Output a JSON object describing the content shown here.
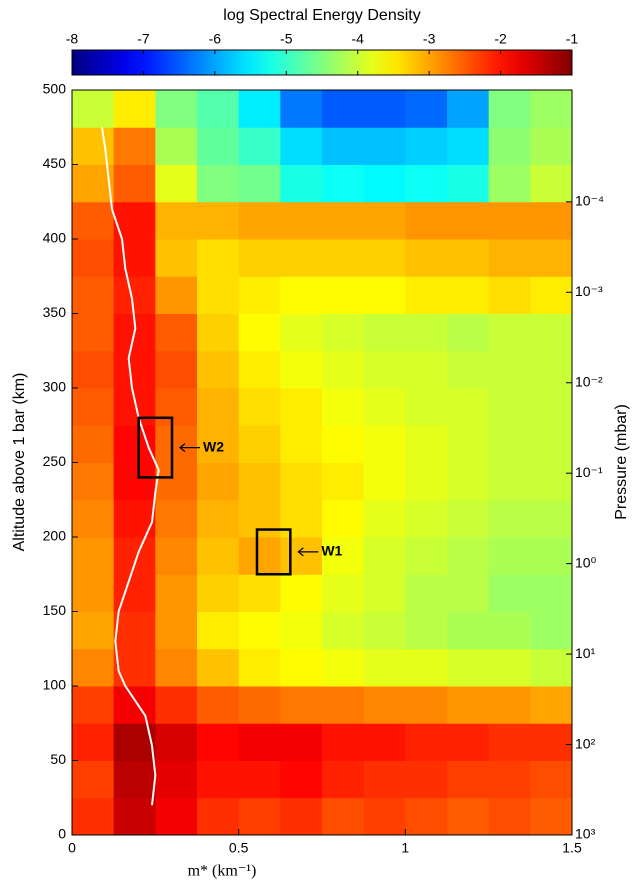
{
  "chart_data": {
    "type": "heatmap",
    "title": "log Spectral Energy Density",
    "xlabel": "m* (km⁻¹)",
    "ylabel": "Altitude above 1 bar (km)",
    "y2label": "Pressure (mbar)",
    "colormap": "jet",
    "xlim": [
      0,
      1.5
    ],
    "xticks": [
      0,
      0.5,
      1,
      1.5
    ],
    "ylim": [
      0,
      500
    ],
    "yticks": [
      0,
      50,
      100,
      150,
      200,
      250,
      300,
      350,
      400,
      450,
      500
    ],
    "y2lim": [
      1000,
      5.8e-06
    ],
    "y2log": true,
    "y2ticks": [
      {
        "value": 1000,
        "label": "10³"
      },
      {
        "value": 100,
        "label": "10²"
      },
      {
        "value": 10,
        "label": "10¹"
      },
      {
        "value": 1,
        "label": "10⁰"
      },
      {
        "value": 0.1,
        "label": "10⁻¹"
      },
      {
        "value": 0.01,
        "label": "10⁻²"
      },
      {
        "value": 0.001,
        "label": "10⁻³"
      },
      {
        "value": 0.0001,
        "label": "10⁻⁴"
      }
    ],
    "clim": [
      -8,
      -1
    ],
    "cticks": [
      -8,
      -7,
      -6,
      -5,
      -4,
      -3,
      -2,
      -1
    ],
    "x_bins": [
      0,
      0.125,
      0.25,
      0.375,
      0.5,
      0.625,
      0.75,
      0.875,
      1,
      1.125,
      1.25,
      1.375,
      1.5
    ],
    "y_bins": [
      0,
      25,
      50,
      75,
      100,
      125,
      150,
      175,
      200,
      225,
      250,
      275,
      300,
      325,
      350,
      375,
      400,
      425,
      450,
      475,
      500
    ],
    "z": [
      [
        -2.2,
        -1.5,
        -1.8,
        -2.2,
        -2.3,
        -2.2,
        -2.4,
        -2.3,
        -2.4,
        -2.5,
        -2.4,
        -2.5
      ],
      [
        -2.3,
        -1.4,
        -1.7,
        -2.0,
        -2.0,
        -1.9,
        -2.1,
        -2.2,
        -2.2,
        -2.3,
        -2.3,
        -2.4
      ],
      [
        -2.1,
        -1.3,
        -1.6,
        -1.9,
        -1.8,
        -1.8,
        -2.0,
        -2.0,
        -2.1,
        -2.1,
        -2.2,
        -2.2
      ],
      [
        -2.3,
        -1.8,
        -2.2,
        -2.5,
        -2.6,
        -2.7,
        -2.7,
        -2.8,
        -2.8,
        -2.9,
        -2.9,
        -3.0
      ],
      [
        -2.8,
        -2.2,
        -2.8,
        -3.2,
        -3.5,
        -3.6,
        -3.7,
        -3.8,
        -3.8,
        -3.9,
        -3.9,
        -4.0
      ],
      [
        -3.0,
        -2.2,
        -2.9,
        -3.5,
        -3.6,
        -3.7,
        -3.9,
        -4.0,
        -4.1,
        -4.2,
        -4.2,
        -4.3
      ],
      [
        -2.9,
        -2.1,
        -2.9,
        -3.3,
        -3.4,
        -3.6,
        -3.8,
        -3.9,
        -4.1,
        -4.1,
        -4.3,
        -4.3
      ],
      [
        -2.9,
        -2.1,
        -2.8,
        -3.2,
        -3.0,
        -3.2,
        -3.7,
        -3.9,
        -4.0,
        -4.1,
        -4.2,
        -4.2
      ],
      [
        -2.8,
        -2.0,
        -2.7,
        -3.1,
        -3.2,
        -3.4,
        -3.6,
        -3.8,
        -3.9,
        -4.0,
        -4.1,
        -4.1
      ],
      [
        -2.7,
        -1.9,
        -2.6,
        -3.0,
        -3.2,
        -3.4,
        -3.5,
        -3.7,
        -3.8,
        -3.9,
        -4.0,
        -4.0
      ],
      [
        -2.6,
        -1.9,
        -2.6,
        -3.1,
        -3.3,
        -3.5,
        -3.6,
        -3.7,
        -3.8,
        -3.9,
        -4.0,
        -4.0
      ],
      [
        -2.5,
        -2.0,
        -2.5,
        -3.1,
        -3.4,
        -3.5,
        -3.7,
        -3.8,
        -3.9,
        -3.9,
        -4.0,
        -4.0
      ],
      [
        -2.4,
        -2.0,
        -2.4,
        -3.2,
        -3.5,
        -3.7,
        -3.8,
        -3.9,
        -3.9,
        -4.0,
        -4.0,
        -4.0
      ],
      [
        -2.5,
        -2.0,
        -2.5,
        -3.3,
        -3.6,
        -3.8,
        -3.9,
        -4.0,
        -4.0,
        -4.1,
        -4.0,
        -4.0
      ],
      [
        -2.5,
        -2.1,
        -2.9,
        -3.4,
        -3.5,
        -3.6,
        -3.6,
        -3.6,
        -3.5,
        -3.5,
        -3.4,
        -3.5
      ],
      [
        -2.4,
        -2.0,
        -3.2,
        -3.4,
        -3.3,
        -3.3,
        -3.3,
        -3.3,
        -3.2,
        -3.2,
        -3.1,
        -3.1
      ],
      [
        -2.5,
        -2.0,
        -3.1,
        -3.1,
        -3.0,
        -3.0,
        -3.0,
        -3.0,
        -2.9,
        -2.9,
        -2.9,
        -2.9
      ],
      [
        -3.0,
        -2.5,
        -3.8,
        -4.5,
        -4.6,
        -5.2,
        -5.3,
        -5.4,
        -5.3,
        -5.2,
        -4.3,
        -4.0
      ],
      [
        -3.2,
        -2.7,
        -4.2,
        -4.7,
        -5.0,
        -5.6,
        -5.8,
        -5.8,
        -5.7,
        -5.6,
        -4.4,
        -4.2
      ],
      [
        -4.0,
        -3.5,
        -4.5,
        -4.8,
        -5.5,
        -6.3,
        -6.5,
        -6.5,
        -6.4,
        -6.0,
        -4.5,
        -4.3
      ]
    ],
    "profile": {
      "color": "#ffffff",
      "x": [
        0.24,
        0.25,
        0.24,
        0.22,
        0.16,
        0.14,
        0.13,
        0.14,
        0.17,
        0.2,
        0.24,
        0.25,
        0.26,
        0.23,
        0.2,
        0.18,
        0.17,
        0.19,
        0.18,
        0.16,
        0.15,
        0.12,
        0.11,
        0.1,
        0.09
      ],
      "y": [
        20,
        40,
        60,
        80,
        100,
        110,
        130,
        150,
        170,
        190,
        210,
        230,
        245,
        260,
        280,
        300,
        320,
        340,
        360,
        380,
        400,
        420,
        440,
        460,
        475
      ]
    },
    "boxes": [
      {
        "label": "W2",
        "xlim": [
          0.2,
          0.3
        ],
        "ylim": [
          240,
          280
        ]
      },
      {
        "label": "W1",
        "xlim": [
          0.555,
          0.655
        ],
        "ylim": [
          175,
          205
        ]
      }
    ]
  }
}
